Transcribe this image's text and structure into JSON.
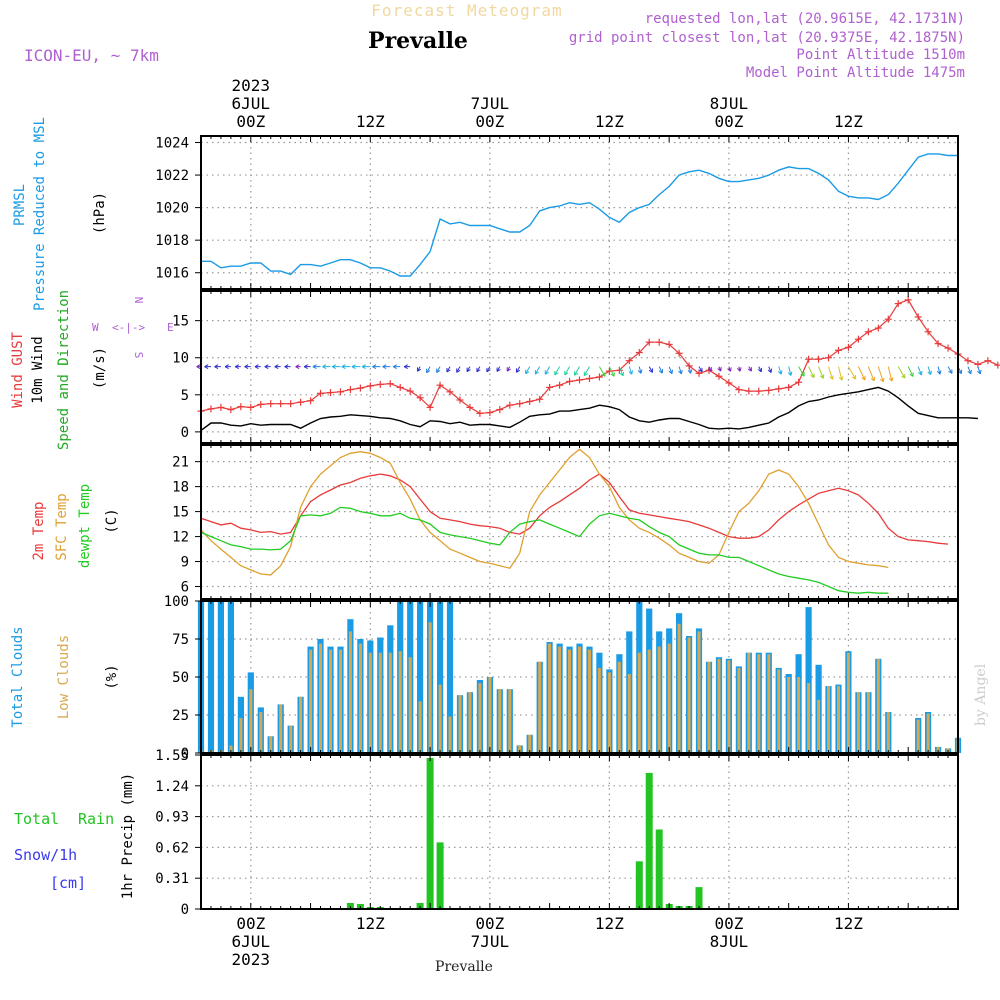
{
  "header": {
    "title": "Forecast Meteogram",
    "station": "Prevalle",
    "model": "ICON-EU, ~ 7km",
    "requested": "requested lon,lat (20.9615E, 42.1731N)",
    "grid": "grid point closest lon,lat (20.9375E, 42.1875N)",
    "point_alt": "Point Altitude 1510m",
    "model_alt": "Model Point Altitude 1475m",
    "year": "2023",
    "footer_station": "Prevalle",
    "watermark": "by Angel"
  },
  "colors": {
    "pressure": "#1a9be6",
    "gust": "#e83a3a",
    "wind": "#000000",
    "temp": "#e83a3a",
    "sfc": "#e0a030",
    "dewpt": "#22cc22",
    "total_clouds": "#1a9be6",
    "low_clouds": "#d8a850",
    "rain": "#22c422",
    "snow": "#3a3aee",
    "purple": "#b060d0"
  },
  "time_axis": {
    "top_labels": [
      {
        "h": 0,
        "lines": [
          "2023",
          "6JUL",
          "00Z"
        ]
      },
      {
        "h": 12,
        "lines": [
          "12Z"
        ]
      },
      {
        "h": 24,
        "lines": [
          "7JUL",
          "00Z"
        ]
      },
      {
        "h": 36,
        "lines": [
          "12Z"
        ]
      },
      {
        "h": 48,
        "lines": [
          "8JUL",
          "00Z"
        ]
      },
      {
        "h": 60,
        "lines": [
          "12Z"
        ]
      }
    ],
    "bottom_labels": [
      {
        "h": 0,
        "lines": [
          "00Z",
          "6JUL",
          "2023"
        ]
      },
      {
        "h": 12,
        "lines": [
          "12Z"
        ]
      },
      {
        "h": 24,
        "lines": [
          "00Z",
          "7JUL"
        ]
      },
      {
        "h": 36,
        "lines": [
          "12Z"
        ]
      },
      {
        "h": 48,
        "lines": [
          "00Z",
          "8JUL"
        ]
      },
      {
        "h": 60,
        "lines": [
          "12Z"
        ]
      }
    ]
  },
  "panel_labels": {
    "pressure": [
      "PRMSL",
      "Pressure Reduced to MSL"
    ],
    "pressure_unit": "(hPa)",
    "wind_gust": "Wind GUST",
    "wind_10m": "10m Wind",
    "wind_speed_dir": "Speed and Direction",
    "wind_unit": "(m/s)",
    "compass_w": "W",
    "compass_e": "E",
    "compass_n": "N",
    "compass_s": "S",
    "temp_2m": "2m Temp",
    "temp_sfc": "SFC Temp",
    "temp_dewpt": "dewpt Temp",
    "temp_unit": "(C)",
    "clouds_total": "Total Clouds",
    "clouds_low": "Low Clouds",
    "clouds_unit": "(%)",
    "rain_total": "Total",
    "rain_rain": "Rain",
    "rain_snow": "Snow/1h",
    "rain_cm": "[cm]",
    "rain_axis": "1hr Precip (mm)"
  },
  "chart_data": [
    {
      "type": "line",
      "name": "pressure",
      "ylabel": "Pressure Reduced to MSL (hPa)",
      "yticks": [
        "1016",
        "1018",
        "1020",
        "1022",
        "1024"
      ],
      "ylim": [
        1015.0,
        1024.4
      ],
      "x_start_hour": -5,
      "x_step_hours": 1,
      "series": [
        {
          "name": "PRMSL",
          "values": [
            1016.7,
            1016.7,
            1016.3,
            1016.4,
            1016.4,
            1016.6,
            1016.6,
            1016.1,
            1016.1,
            1015.9,
            1016.5,
            1016.5,
            1016.4,
            1016.6,
            1016.8,
            1016.8,
            1016.6,
            1016.3,
            1016.3,
            1016.1,
            1015.8,
            1015.8,
            1016.5,
            1017.3,
            1019.3,
            1019.0,
            1019.1,
            1018.9,
            1018.9,
            1018.9,
            1018.7,
            1018.5,
            1018.5,
            1018.9,
            1019.8,
            1020.0,
            1020.1,
            1020.3,
            1020.2,
            1020.3,
            1019.9,
            1019.4,
            1019.1,
            1019.7,
            1020.0,
            1020.2,
            1020.8,
            1021.3,
            1022.0,
            1022.2,
            1022.3,
            1022.1,
            1021.8,
            1021.6,
            1021.6,
            1021.7,
            1021.8,
            1022.0,
            1022.3,
            1022.5,
            1022.4,
            1022.4,
            1022.1,
            1021.7,
            1021.0,
            1020.7,
            1020.6,
            1020.6,
            1020.5,
            1020.8,
            1021.5,
            1022.3,
            1023.1,
            1023.3,
            1023.3,
            1023.2,
            1023.2
          ]
        }
      ]
    },
    {
      "type": "line",
      "name": "wind",
      "ylabel": "(m/s)",
      "yticks": [
        "0",
        "5",
        "10",
        "15"
      ],
      "ylim": [
        -1.5,
        19.0
      ],
      "x_start_hour": -5,
      "x_step_hours": 1,
      "series": [
        {
          "name": "Wind GUST",
          "values": [
            2.8,
            3.1,
            3.3,
            3.0,
            3.4,
            3.3,
            3.7,
            3.8,
            3.8,
            3.8,
            4.0,
            4.2,
            5.2,
            5.3,
            5.4,
            5.7,
            5.9,
            6.2,
            6.4,
            6.5,
            6.0,
            5.5,
            4.6,
            3.3,
            6.3,
            5.4,
            4.3,
            3.3,
            2.5,
            2.6,
            3.0,
            3.6,
            3.8,
            4.1,
            4.4,
            6.0,
            6.3,
            6.8,
            7.0,
            7.2,
            7.4,
            8.2,
            8.3,
            9.6,
            10.7,
            12.1,
            12.1,
            11.8,
            10.6,
            8.9,
            7.9,
            8.3,
            7.5,
            6.6,
            5.7,
            5.5,
            5.5,
            5.6,
            5.8,
            6.0,
            6.7,
            9.8,
            9.8,
            10.0,
            11.0,
            11.4,
            12.5,
            13.5,
            14.0,
            15.2,
            17.3,
            17.8,
            15.5,
            13.5,
            11.9,
            11.3,
            10.5,
            9.6,
            9.1,
            9.6,
            9.0
          ]
        },
        {
          "name": "10m Wind",
          "values": [
            0.2,
            1.2,
            1.2,
            0.9,
            0.8,
            1.1,
            0.9,
            1.0,
            1.0,
            1.0,
            0.5,
            1.2,
            1.8,
            2.0,
            2.1,
            2.3,
            2.2,
            2.1,
            1.9,
            1.8,
            1.5,
            1.0,
            0.7,
            1.5,
            1.4,
            1.1,
            1.3,
            0.9,
            1.0,
            1.0,
            0.8,
            0.6,
            1.3,
            2.1,
            2.3,
            2.4,
            2.8,
            2.8,
            3.0,
            3.2,
            3.6,
            3.4,
            3.0,
            2.0,
            1.5,
            1.3,
            1.6,
            1.8,
            1.8,
            1.4,
            1.0,
            0.5,
            0.4,
            0.5,
            0.4,
            0.6,
            0.9,
            1.2,
            2.0,
            2.6,
            3.5,
            4.1,
            4.3,
            4.7,
            5.0,
            5.2,
            5.4,
            5.7,
            6.0,
            5.5,
            4.6,
            3.5,
            2.5,
            2.2,
            1.9,
            1.9,
            1.9,
            1.9,
            1.8
          ]
        }
      ],
      "direction_arrows_from_deg": "variable (W to N)"
    },
    {
      "type": "line",
      "name": "temperature",
      "ylabel": "(C)",
      "yticks": [
        "6",
        "9",
        "12",
        "15",
        "18",
        "21"
      ],
      "ylim": [
        4.5,
        23.0
      ],
      "x_start_hour": -5,
      "x_step_hours": 1,
      "series": [
        {
          "name": "2m Temp",
          "values": [
            14.2,
            13.8,
            13.4,
            13.6,
            13.0,
            12.8,
            12.5,
            12.6,
            12.3,
            12.5,
            14.5,
            16.2,
            17.0,
            17.6,
            18.2,
            18.5,
            19.0,
            19.3,
            19.5,
            19.3,
            18.8,
            18.0,
            16.5,
            15.0,
            14.2,
            14.0,
            13.8,
            13.5,
            13.3,
            13.2,
            13.0,
            12.5,
            12.3,
            13.0,
            14.5,
            15.5,
            16.2,
            17.0,
            17.8,
            18.8,
            19.5,
            18.5,
            16.8,
            15.2,
            14.8,
            14.6,
            14.4,
            14.2,
            14.0,
            13.8,
            13.4,
            13.0,
            12.5,
            12.0,
            11.8,
            11.8,
            12.0,
            12.8,
            14.0,
            15.0,
            15.8,
            16.5,
            17.2,
            17.5,
            17.8,
            17.5,
            17.0,
            16.0,
            14.8,
            13.0,
            12.0,
            11.6,
            11.5,
            11.4,
            11.2,
            11.1
          ]
        },
        {
          "name": "SFC Temp",
          "values": [
            12.8,
            11.5,
            10.5,
            9.5,
            8.5,
            8.0,
            7.5,
            7.4,
            8.5,
            10.8,
            15.5,
            18.0,
            19.5,
            20.5,
            21.5,
            22.0,
            22.2,
            22.0,
            21.5,
            20.8,
            18.5,
            16.5,
            14.0,
            12.5,
            11.5,
            10.5,
            10.0,
            9.5,
            9.0,
            8.8,
            8.5,
            8.2,
            10.0,
            15.0,
            17.0,
            18.5,
            20.0,
            21.5,
            22.5,
            21.5,
            19.5,
            18.0,
            15.5,
            14.0,
            13.0,
            12.5,
            11.8,
            11.0,
            10.0,
            9.5,
            9.0,
            8.8,
            9.8,
            12.5,
            15.0,
            16.0,
            17.5,
            19.5,
            20.0,
            19.5,
            18.0,
            16.0,
            13.5,
            11.0,
            9.5,
            9.0,
            8.8,
            8.6,
            8.5,
            8.3
          ]
        },
        {
          "name": "dewpt Temp",
          "values": [
            12.5,
            12.0,
            11.5,
            11.0,
            10.8,
            10.5,
            10.5,
            10.4,
            10.5,
            11.5,
            14.5,
            14.6,
            14.5,
            14.8,
            15.5,
            15.4,
            15.0,
            14.8,
            14.5,
            14.5,
            14.8,
            14.2,
            14.0,
            13.5,
            12.5,
            12.2,
            12.0,
            11.8,
            11.5,
            11.2,
            11.0,
            12.5,
            13.5,
            13.8,
            14.0,
            13.5,
            13.0,
            12.5,
            12.0,
            13.5,
            14.5,
            14.8,
            14.5,
            14.2,
            14.0,
            13.2,
            12.5,
            12.0,
            11.0,
            10.5,
            10.0,
            9.8,
            9.8,
            9.5,
            9.5,
            9.0,
            8.5,
            8.0,
            7.5,
            7.2,
            7.0,
            6.8,
            6.5,
            6.0,
            5.5,
            5.3,
            5.2,
            5.3,
            5.2,
            5.2
          ]
        }
      ]
    },
    {
      "type": "bar",
      "name": "clouds",
      "ylabel": "(%)",
      "yticks": [
        "0",
        "25",
        "50",
        "75",
        "100"
      ],
      "ylim": [
        0,
        100
      ],
      "x_start_hour": -5,
      "x_step_hours": 1,
      "series": [
        {
          "name": "Total Clouds",
          "values": [
            100,
            100,
            100,
            100,
            37,
            53,
            30,
            11,
            32,
            18,
            37,
            70,
            75,
            70,
            70,
            88,
            75,
            74,
            76,
            84,
            100,
            100,
            100,
            100,
            100,
            100,
            38,
            40,
            48,
            50,
            42,
            42,
            5,
            12,
            60,
            73,
            72,
            70,
            72,
            70,
            66,
            55,
            65,
            80,
            100,
            95,
            80,
            82,
            92,
            77,
            82,
            60,
            63,
            62,
            57,
            66,
            66,
            66,
            56,
            52,
            65,
            96,
            58,
            44,
            45,
            67,
            40,
            40,
            62,
            27,
            0,
            0,
            23,
            27,
            4,
            3,
            10
          ]
        },
        {
          "name": "Low Clouds",
          "values": [
            2,
            2,
            2,
            5,
            23,
            42,
            27,
            11,
            32,
            18,
            37,
            68,
            72,
            68,
            68,
            80,
            72,
            66,
            66,
            66,
            67,
            63,
            34,
            86,
            45,
            24,
            38,
            40,
            46,
            50,
            42,
            42,
            5,
            12,
            60,
            72,
            70,
            68,
            70,
            68,
            56,
            53,
            60,
            52,
            66,
            68,
            70,
            72,
            85,
            76,
            80,
            60,
            62,
            61,
            56,
            66,
            65,
            65,
            55,
            50,
            50,
            46,
            35,
            44,
            44,
            66,
            40,
            40,
            62,
            27,
            0,
            0,
            22,
            26,
            4,
            3,
            10
          ]
        }
      ]
    },
    {
      "type": "bar",
      "name": "precipitation",
      "ylabel": "1hr Precip (mm)",
      "yticks": [
        "0",
        "0.31",
        "0.62",
        "0.93",
        "1.24",
        "1.55"
      ],
      "ylim": [
        0,
        1.55
      ],
      "x_start_hour": -5,
      "x_step_hours": 1,
      "series": [
        {
          "name": "Total Rain",
          "values": [
            0,
            0,
            0,
            0,
            0,
            0,
            0,
            0,
            0,
            0,
            0,
            0,
            0,
            0,
            0,
            0.06,
            0.05,
            0.02,
            0.02,
            0,
            0,
            0,
            0.06,
            1.52,
            0.67,
            0,
            0,
            0,
            0,
            0,
            0,
            0,
            0,
            0,
            0,
            0,
            0,
            0,
            0,
            0,
            0,
            0,
            0,
            0,
            0.48,
            1.37,
            0.8,
            0.05,
            0.03,
            0.03,
            0.22,
            0,
            0,
            0,
            0,
            0,
            0,
            0,
            0,
            0,
            0,
            0,
            0,
            0,
            0,
            0,
            0,
            0,
            0,
            0,
            0,
            0,
            0,
            0,
            0,
            0,
            0
          ]
        },
        {
          "name": "Snow/1h",
          "values": []
        }
      ]
    }
  ]
}
